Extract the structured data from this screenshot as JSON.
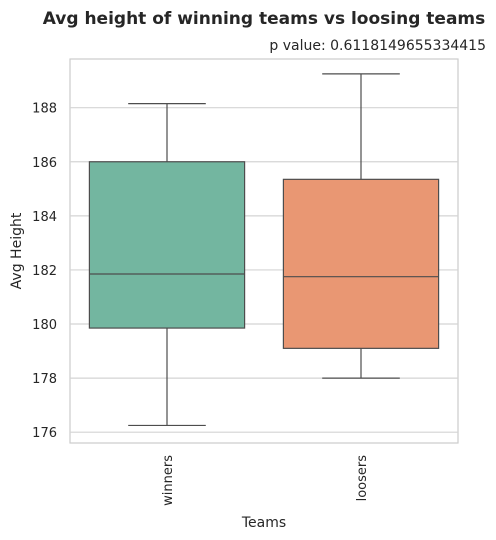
{
  "chart_data": {
    "type": "box",
    "title": "Avg height of winning teams vs loosing teams",
    "subtitle": "p value: 0.6118149655334415",
    "xlabel": "Teams",
    "ylabel": "Avg Height",
    "ylim": [
      175.6,
      189.8
    ],
    "yticks": [
      176,
      178,
      180,
      182,
      184,
      186,
      188
    ],
    "grid": true,
    "categories": [
      "winners",
      "loosers"
    ],
    "boxes": [
      {
        "category": "winners",
        "whisker_low": 176.25,
        "q1": 179.85,
        "median": 181.85,
        "q3": 186.0,
        "whisker_high": 188.15,
        "color": "#73b6a0"
      },
      {
        "category": "loosers",
        "whisker_low": 178.0,
        "q1": 179.1,
        "median": 181.75,
        "q3": 185.35,
        "whisker_high": 189.25,
        "color": "#e99773"
      }
    ]
  }
}
